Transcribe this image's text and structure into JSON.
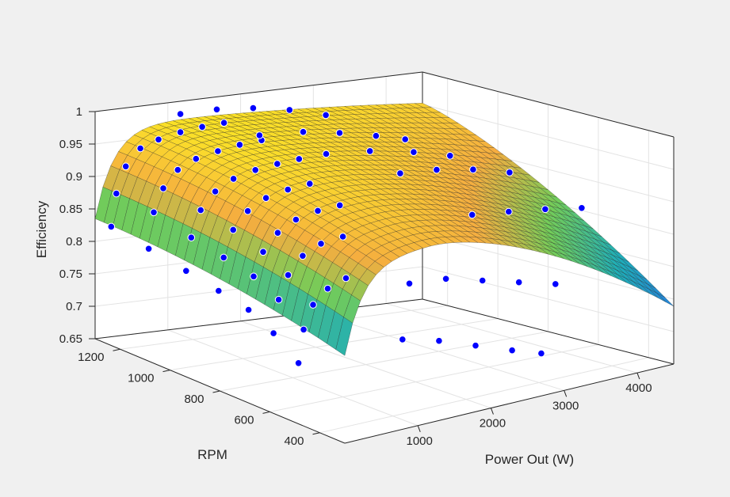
{
  "chart_data": {
    "type": "surface3d",
    "title": "",
    "xlabel": "Power Out (W)",
    "ylabel": "RPM",
    "zlabel": "Efficiency",
    "xlim": [
      0,
      4500
    ],
    "ylim": [
      300,
      1300
    ],
    "zlim": [
      0.65,
      1
    ],
    "x_ticks": [
      "1000",
      "2000",
      "3000",
      "4000"
    ],
    "y_ticks": [
      "400",
      "600",
      "800",
      "1000",
      "1200"
    ],
    "z_ticks": [
      "0.65",
      "0.7",
      "0.75",
      "0.8",
      "0.85",
      "0.9",
      "0.95",
      "1"
    ],
    "grid": true,
    "colormap": "parula",
    "surface_series": "fitted efficiency surface",
    "scatter_color": "#0000ff",
    "scatter_edge": "#ffffff",
    "series": [
      {
        "marker": "scatter",
        "points": [
          [
            50,
            1250,
            0.83
          ],
          [
            120,
            1250,
            0.88
          ],
          [
            250,
            1250,
            0.92
          ],
          [
            450,
            1250,
            0.945
          ],
          [
            700,
            1250,
            0.955
          ],
          [
            1000,
            1250,
            0.962
          ],
          [
            1300,
            1250,
            0.966
          ],
          [
            1600,
            1250,
            0.968
          ]
        ]
      },
      {
        "marker": "scatter",
        "points": [
          [
            50,
            1100,
            0.82
          ],
          [
            120,
            1100,
            0.875
          ],
          [
            250,
            1100,
            0.91
          ],
          [
            450,
            1100,
            0.935
          ],
          [
            700,
            1100,
            0.948
          ],
          [
            1000,
            1100,
            0.955
          ],
          [
            1300,
            1100,
            0.96
          ],
          [
            1600,
            1100,
            0.962
          ]
        ]
      },
      {
        "marker": "scatter",
        "points": [
          [
            50,
            950,
            0.81
          ],
          [
            120,
            950,
            0.86
          ],
          [
            250,
            950,
            0.9
          ],
          [
            450,
            950,
            0.925
          ],
          [
            700,
            950,
            0.94
          ],
          [
            1000,
            950,
            0.948
          ],
          [
            1300,
            950,
            0.952
          ],
          [
            1600,
            950,
            0.954
          ]
        ]
      },
      {
        "marker": "scatter",
        "points": [
          [
            50,
            820,
            0.8
          ],
          [
            120,
            820,
            0.85
          ],
          [
            250,
            820,
            0.89
          ],
          [
            450,
            820,
            0.915
          ],
          [
            700,
            820,
            0.93
          ],
          [
            1000,
            820,
            0.937
          ],
          [
            1300,
            820,
            0.94
          ]
        ]
      },
      {
        "marker": "scatter",
        "points": [
          [
            50,
            700,
            0.79
          ],
          [
            120,
            700,
            0.84
          ],
          [
            250,
            700,
            0.875
          ],
          [
            450,
            700,
            0.9
          ],
          [
            700,
            700,
            0.915
          ],
          [
            1000,
            700,
            0.922
          ],
          [
            1300,
            700,
            0.924
          ]
        ]
      },
      {
        "marker": "scatter",
        "points": [
          [
            50,
            600,
            0.77
          ],
          [
            120,
            600,
            0.82
          ],
          [
            250,
            600,
            0.855
          ],
          [
            450,
            600,
            0.88
          ],
          [
            700,
            600,
            0.893
          ],
          [
            1000,
            600,
            0.897
          ]
        ]
      },
      {
        "marker": "scatter",
        "points": [
          [
            50,
            500,
            0.74
          ],
          [
            120,
            500,
            0.79
          ],
          [
            250,
            500,
            0.825
          ],
          [
            450,
            500,
            0.845
          ],
          [
            700,
            500,
            0.855
          ]
        ]
      },
      {
        "marker": "scatter",
        "points": [
          [
            1000,
            1250,
            0.99
          ],
          [
            1500,
            1250,
            0.99
          ],
          [
            2000,
            1250,
            0.985
          ],
          [
            2500,
            1250,
            0.975
          ],
          [
            3000,
            1250,
            0.96
          ]
        ]
      },
      {
        "marker": "scatter",
        "points": [
          [
            1400,
            1050,
            0.98
          ],
          [
            2000,
            1050,
            0.975
          ],
          [
            2500,
            1050,
            0.965
          ],
          [
            3000,
            1050,
            0.952
          ],
          [
            3400,
            1050,
            0.94
          ]
        ]
      },
      {
        "marker": "scatter",
        "points": [
          [
            1800,
            900,
            0.965
          ],
          [
            2400,
            900,
            0.958
          ],
          [
            3000,
            900,
            0.945
          ],
          [
            3500,
            900,
            0.93
          ]
        ]
      },
      {
        "marker": "scatter",
        "points": [
          [
            2300,
            750,
            0.945
          ],
          [
            2800,
            750,
            0.94
          ],
          [
            3300,
            750,
            0.93
          ],
          [
            3800,
            750,
            0.915
          ]
        ]
      },
      {
        "marker": "scatter",
        "points": [
          [
            2600,
            550,
            0.9
          ],
          [
            3100,
            550,
            0.893
          ],
          [
            3600,
            550,
            0.885
          ],
          [
            4100,
            550,
            0.875
          ]
        ]
      },
      {
        "marker": "scatter",
        "points": [
          [
            1500,
            480,
            0.83
          ],
          [
            2000,
            480,
            0.825
          ],
          [
            2500,
            480,
            0.81
          ],
          [
            3000,
            480,
            0.795
          ],
          [
            3500,
            480,
            0.78
          ]
        ]
      },
      {
        "marker": "scatter",
        "points": [
          [
            1200,
            420,
            0.76
          ],
          [
            1700,
            420,
            0.745
          ],
          [
            2200,
            420,
            0.725
          ],
          [
            2700,
            420,
            0.705
          ],
          [
            3100,
            420,
            0.69
          ]
        ]
      }
    ]
  }
}
